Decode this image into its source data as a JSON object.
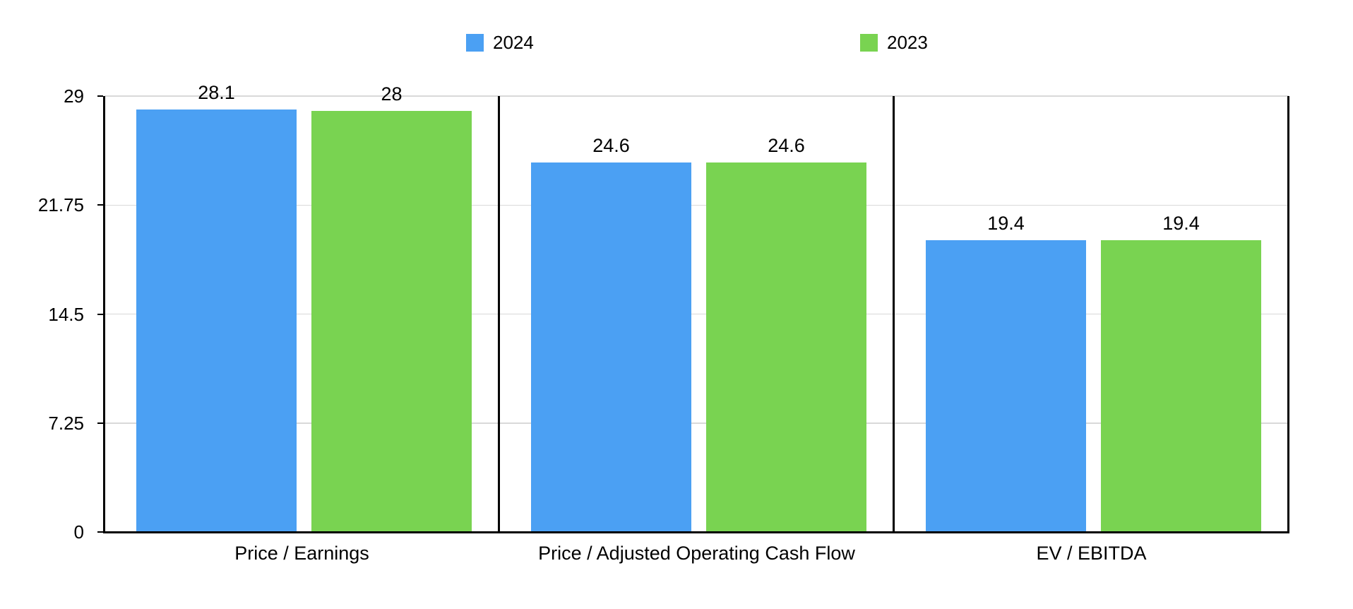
{
  "legend": {
    "items": [
      {
        "label": "2024",
        "color": "#4BA0F3"
      },
      {
        "label": "2023",
        "color": "#79D351"
      }
    ]
  },
  "chart_data": {
    "type": "bar",
    "categories": [
      "Price / Earnings",
      "Price / Adjusted Operating Cash Flow",
      "EV / EBITDA"
    ],
    "series": [
      {
        "name": "2024",
        "color": "#4BA0F3",
        "values": [
          28.1,
          24.6,
          19.4
        ]
      },
      {
        "name": "2023",
        "color": "#79D351",
        "values": [
          28,
          24.6,
          19.4
        ]
      }
    ],
    "bar_value_labels": [
      [
        "28.1",
        "28"
      ],
      [
        "24.6",
        "24.6"
      ],
      [
        "19.4",
        "19.4"
      ]
    ],
    "y_ticks": [
      29,
      21.75,
      14.5,
      7.25,
      0
    ],
    "y_tick_labels": [
      "29",
      "21.75",
      "14.5",
      "7.25",
      "0"
    ],
    "ylim": [
      0,
      29
    ],
    "grid": true,
    "legend_position": "top"
  },
  "colors": {
    "background": "#ffffff",
    "axis": "#000000",
    "gridline": "#d9d9d9",
    "text": "#000000"
  }
}
